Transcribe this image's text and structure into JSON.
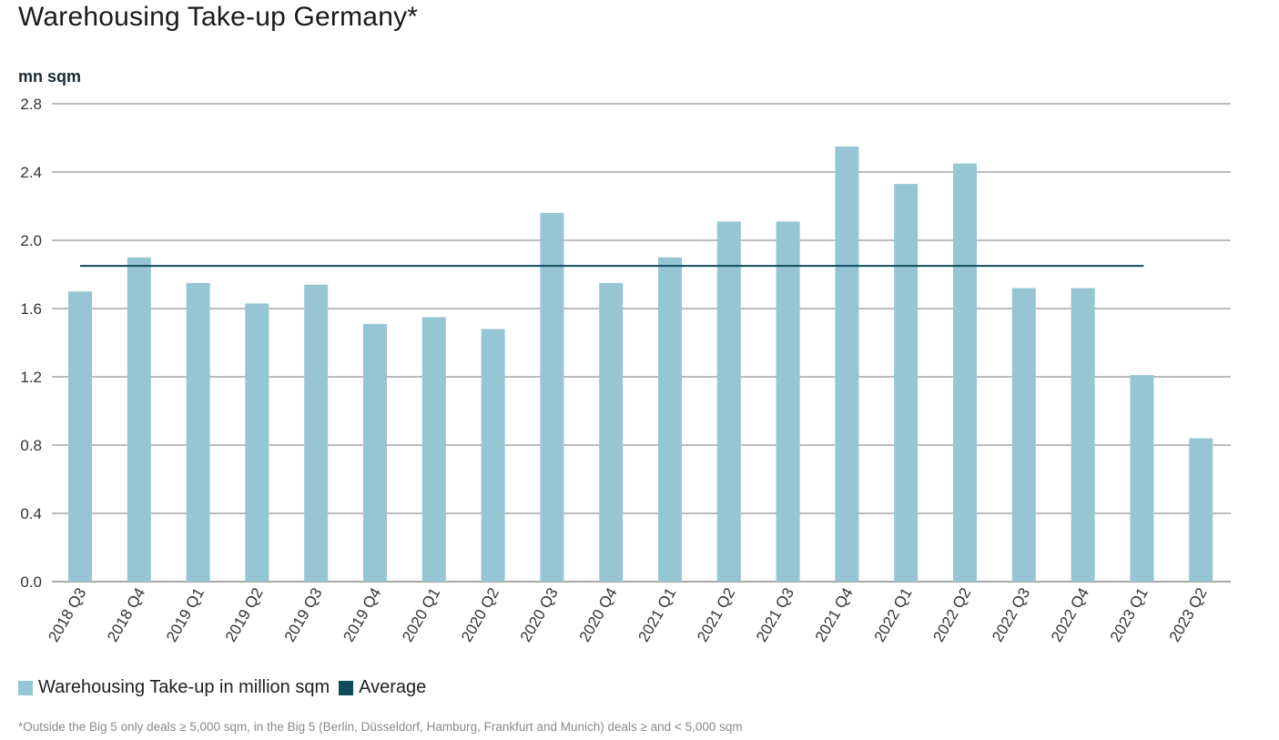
{
  "chart_data": {
    "type": "bar",
    "title": "Warehousing Take-up Germany*",
    "ylabel": "mn sqm",
    "ylim": [
      0,
      2.8
    ],
    "yticks": [
      "0.0",
      "0.4",
      "0.8",
      "1.2",
      "1.6",
      "2.0",
      "2.4",
      "2.8"
    ],
    "grid": true,
    "categories": [
      "2018 Q3",
      "2018 Q4",
      "2019 Q1",
      "2019 Q2",
      "2019 Q3",
      "2019 Q4",
      "2020 Q1",
      "2020 Q2",
      "2020 Q3",
      "2020 Q4",
      "2021 Q1",
      "2021 Q2",
      "2021 Q3",
      "2021 Q4",
      "2022 Q1",
      "2022 Q2",
      "2022 Q3",
      "2022 Q4",
      "2023 Q1",
      "2023 Q2"
    ],
    "series": [
      {
        "name": "Warehousing Take-up in million sqm",
        "color": "#96c5d4",
        "values": [
          1.7,
          1.9,
          1.75,
          1.63,
          1.74,
          1.51,
          1.55,
          1.48,
          2.16,
          1.75,
          1.9,
          2.11,
          2.11,
          2.55,
          2.33,
          2.45,
          1.72,
          1.72,
          1.21,
          0.84
        ]
      }
    ],
    "average": {
      "name": "Average",
      "color": "#0f4c5c",
      "value": 1.85
    },
    "legend_position": "bottom-left",
    "footnote": "*Outside the Big 5 only deals ≥ 5,000 sqm, in the Big 5 (Berlin, Düsseldorf, Hamburg, Frankfurt and Munich) deals ≥ and < 5,000 sqm"
  }
}
